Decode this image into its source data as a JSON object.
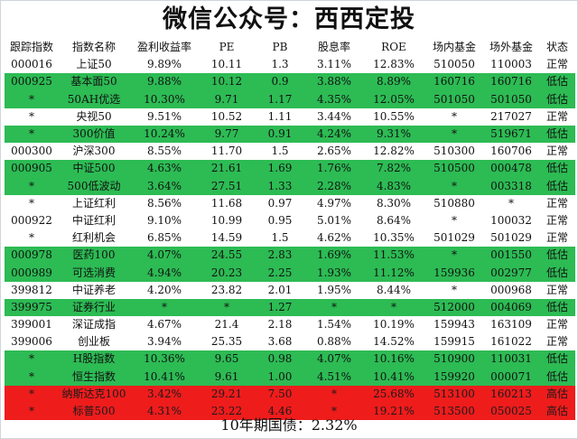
{
  "title": "微信公众号：西西定投",
  "headers": [
    "跟踪指数",
    "指数名称",
    "盈利收益率",
    "PE",
    "PB",
    "股息率",
    "ROE",
    "场内基金",
    "场外基金",
    "状态"
  ],
  "rows": [
    {
      "tone": "white",
      "cells": [
        "000016",
        "上证50",
        "9.89%",
        "10.11",
        "1.3",
        "3.11%",
        "12.83%",
        "510050",
        "110003",
        "正常"
      ]
    },
    {
      "tone": "green",
      "cells": [
        "000925",
        "基本面50",
        "9.88%",
        "10.12",
        "0.9",
        "3.88%",
        "8.89%",
        "160716",
        "160716",
        "低估"
      ]
    },
    {
      "tone": "green",
      "cells": [
        "*",
        "50AH优选",
        "10.30%",
        "9.71",
        "1.17",
        "4.35%",
        "12.05%",
        "501050",
        "501050",
        "低估"
      ]
    },
    {
      "tone": "white",
      "cells": [
        "*",
        "央视50",
        "9.51%",
        "10.52",
        "1.11",
        "3.44%",
        "10.55%",
        "*",
        "217027",
        "正常"
      ]
    },
    {
      "tone": "green",
      "cells": [
        "*",
        "300价值",
        "10.24%",
        "9.77",
        "0.91",
        "4.24%",
        "9.31%",
        "*",
        "519671",
        "低估"
      ]
    },
    {
      "tone": "white",
      "cells": [
        "000300",
        "沪深300",
        "8.55%",
        "11.70",
        "1.5",
        "2.65%",
        "12.82%",
        "510300",
        "160706",
        "正常"
      ]
    },
    {
      "tone": "green",
      "cells": [
        "000905",
        "中证500",
        "4.63%",
        "21.61",
        "1.69",
        "1.76%",
        "7.82%",
        "510500",
        "000478",
        "低估"
      ]
    },
    {
      "tone": "green",
      "cells": [
        "*",
        "500低波动",
        "3.64%",
        "27.51",
        "1.33",
        "2.28%",
        "4.83%",
        "*",
        "003318",
        "低估"
      ]
    },
    {
      "tone": "white",
      "cells": [
        "*",
        "上证红利",
        "8.56%",
        "11.68",
        "0.97",
        "4.97%",
        "8.30%",
        "510880",
        "*",
        "正常"
      ]
    },
    {
      "tone": "white",
      "cells": [
        "000922",
        "中证红利",
        "9.10%",
        "10.99",
        "0.95",
        "5.01%",
        "8.64%",
        "*",
        "100032",
        "正常"
      ]
    },
    {
      "tone": "white",
      "cells": [
        "*",
        "红利机会",
        "6.85%",
        "14.59",
        "1.5",
        "4.62%",
        "10.35%",
        "501029",
        "501029",
        "正常"
      ]
    },
    {
      "tone": "green",
      "cells": [
        "000978",
        "医药100",
        "4.07%",
        "24.55",
        "2.83",
        "1.69%",
        "11.53%",
        "*",
        "001550",
        "低估"
      ]
    },
    {
      "tone": "green",
      "cells": [
        "000989",
        "可选消费",
        "4.94%",
        "20.23",
        "2.25",
        "1.93%",
        "11.12%",
        "159936",
        "002977",
        "低估"
      ]
    },
    {
      "tone": "white",
      "cells": [
        "399812",
        "中证养老",
        "4.20%",
        "23.82",
        "2.01",
        "1.95%",
        "8.44%",
        "*",
        "000968",
        "正常"
      ]
    },
    {
      "tone": "green",
      "cells": [
        "399975",
        "证券行业",
        "*",
        "*",
        "1.27",
        "*",
        "*",
        "512000",
        "004069",
        "低估"
      ]
    },
    {
      "tone": "white",
      "cells": [
        "399001",
        "深证成指",
        "4.67%",
        "21.4",
        "2.18",
        "1.54%",
        "10.19%",
        "159943",
        "163109",
        "正常"
      ]
    },
    {
      "tone": "white",
      "cells": [
        "399006",
        "创业板",
        "3.94%",
        "25.35",
        "3.68",
        "0.88%",
        "14.52%",
        "159915",
        "161022",
        "正常"
      ]
    },
    {
      "tone": "green",
      "cells": [
        "*",
        "H股指数",
        "10.36%",
        "9.65",
        "0.98",
        "4.07%",
        "10.16%",
        "510900",
        "110031",
        "低估"
      ]
    },
    {
      "tone": "green",
      "cells": [
        "*",
        "恒生指数",
        "10.41%",
        "9.61",
        "1.00",
        "4.51%",
        "10.41%",
        "159920",
        "000071",
        "低估"
      ]
    },
    {
      "tone": "red",
      "cells": [
        "*",
        "纳斯达克100",
        "3.42%",
        "29.21",
        "7.50",
        "*",
        "25.68%",
        "513100",
        "160213",
        "高估"
      ]
    },
    {
      "tone": "red",
      "cells": [
        "*",
        "标普500",
        "4.31%",
        "23.22",
        "4.46",
        "*",
        "19.21%",
        "513500",
        "050025",
        "高估"
      ]
    }
  ],
  "footer": "10年期国债：2.32%"
}
